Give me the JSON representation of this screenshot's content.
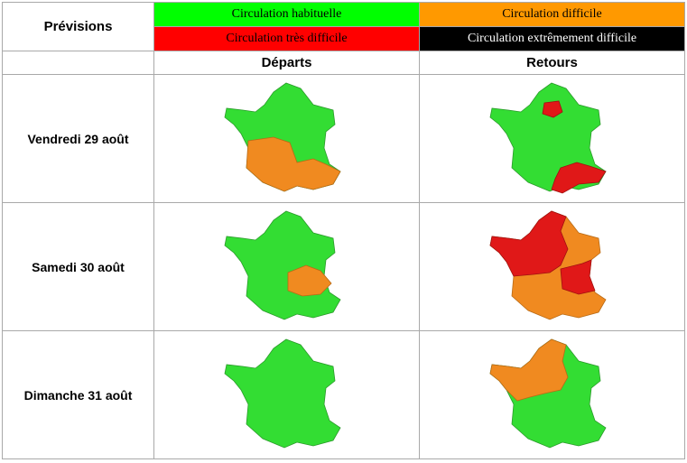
{
  "header": {
    "title": "Prévisions"
  },
  "legend": {
    "normal": {
      "label": "Circulation habituelle",
      "color": "#00ff00"
    },
    "hard": {
      "label": "Circulation difficile",
      "color": "#ff9900"
    },
    "vhard": {
      "label": "Circulation très difficile",
      "color": "#ff0000"
    },
    "xhard": {
      "label": "Circulation extrêmement difficile",
      "color": "#000000"
    }
  },
  "columns": {
    "departures": "Départs",
    "returns": "Retours"
  },
  "days": [
    {
      "label": "Vendredi 29 août"
    },
    {
      "label": "Samedi 30 août"
    },
    {
      "label": "Dimanche 31 août"
    }
  ]
}
